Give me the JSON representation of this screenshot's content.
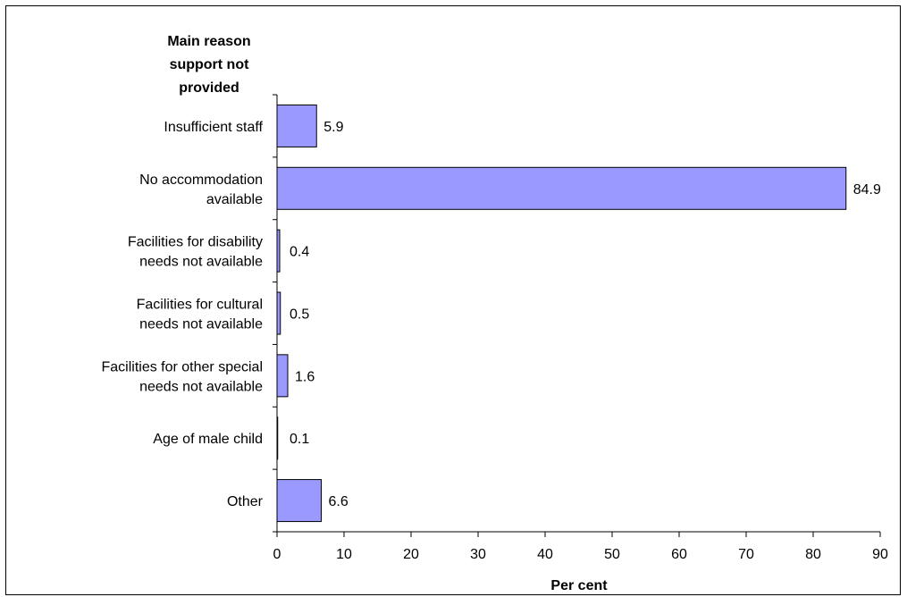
{
  "chart_data": {
    "type": "bar",
    "orientation": "horizontal",
    "title": "",
    "ylabel": "Main reason support not provided",
    "xlabel": "Per cent",
    "categories": [
      [
        "Insufficient staff"
      ],
      [
        "No accommodation",
        "available"
      ],
      [
        "Facilities for disability",
        "needs not available"
      ],
      [
        "Facilities for cultural",
        "needs not available"
      ],
      [
        "Facilities for other special",
        "needs not available"
      ],
      [
        "Age of male child"
      ],
      [
        "Other"
      ]
    ],
    "values": [
      5.9,
      84.9,
      0.4,
      0.5,
      1.6,
      0.1,
      6.6
    ],
    "data_labels": [
      "5.9",
      "84.9",
      "0.4",
      "0.5",
      "1.6",
      "0.1",
      "6.6"
    ],
    "xlim": [
      0,
      90
    ],
    "xticks": [
      0,
      10,
      20,
      30,
      40,
      50,
      60,
      70,
      80,
      90
    ],
    "grid": false,
    "legend": "none",
    "colors": {
      "bar_fill": "#9999ff",
      "bar_stroke": "#000000",
      "axis": "#000000"
    }
  }
}
